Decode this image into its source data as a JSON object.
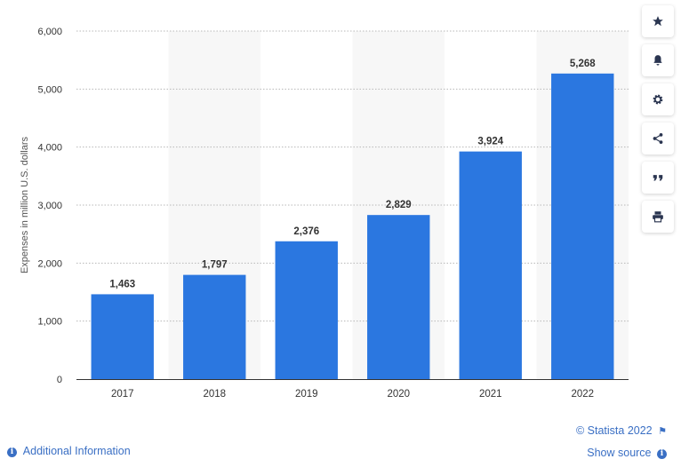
{
  "chart_data": {
    "type": "bar",
    "categories": [
      "2017",
      "2018",
      "2019",
      "2020",
      "2021",
      "2022"
    ],
    "values": [
      1463,
      1797,
      2376,
      2829,
      3924,
      5268
    ],
    "value_labels": [
      "1,463",
      "1,797",
      "2,376",
      "2,829",
      "3,924",
      "5,268"
    ],
    "title": "",
    "xlabel": "",
    "ylabel": "Expenses in million U.S. dollars",
    "ylim": [
      0,
      6000
    ],
    "yticks": [
      0,
      1000,
      2000,
      3000,
      4000,
      5000,
      6000
    ],
    "ytick_labels": [
      "0",
      "1,000",
      "2,000",
      "3,000",
      "4,000",
      "5,000",
      "6,000"
    ],
    "grid": true,
    "bar_color": "#2b77e0"
  },
  "sidebar": {
    "buttons": [
      {
        "name": "favorite-button",
        "icon": "star-icon"
      },
      {
        "name": "notification-button",
        "icon": "bell-icon"
      },
      {
        "name": "settings-button",
        "icon": "gear-icon"
      },
      {
        "name": "share-button",
        "icon": "share-icon"
      },
      {
        "name": "cite-button",
        "icon": "quote-icon"
      },
      {
        "name": "print-button",
        "icon": "print-icon"
      }
    ]
  },
  "footer": {
    "copyright": "© Statista 2022",
    "show_source": "Show source",
    "additional_info": "Additional Information"
  }
}
